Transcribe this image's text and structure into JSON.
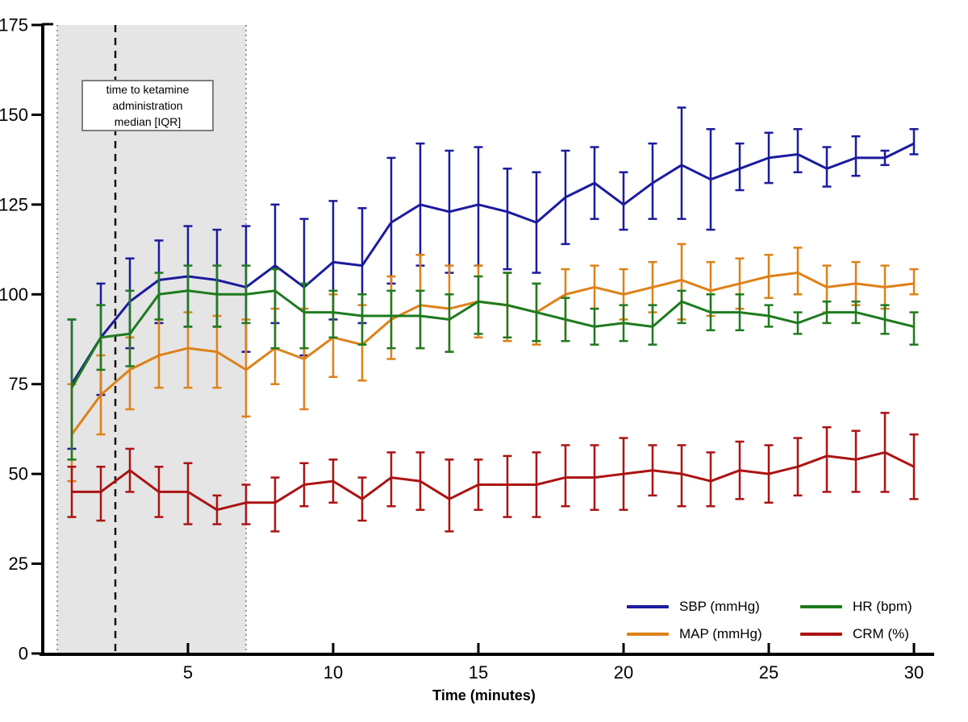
{
  "chart_data": {
    "type": "line",
    "title": "",
    "xlabel": "Time (minutes)",
    "ylabel": "",
    "x": [
      1,
      2,
      3,
      4,
      5,
      6,
      7,
      8,
      9,
      10,
      11,
      12,
      13,
      14,
      15,
      16,
      17,
      18,
      19,
      20,
      21,
      22,
      23,
      24,
      25,
      26,
      27,
      28,
      29,
      30
    ],
    "xlim": [
      0,
      30.7
    ],
    "ylim": [
      0,
      175
    ],
    "xticks": [
      5,
      10,
      15,
      20,
      25,
      30
    ],
    "yticks": [
      0,
      25,
      50,
      75,
      100,
      125,
      150,
      175
    ],
    "grid": false,
    "error_bars": true,
    "legend_position": "inside-bottom-right",
    "series": [
      {
        "name": "SBP (mmHg)",
        "color": "#1b1b9e",
        "values": [
          75,
          88,
          98,
          104,
          105,
          104,
          102,
          108,
          102,
          109,
          108,
          120,
          125,
          123,
          125,
          123,
          120,
          127,
          131,
          125,
          131,
          136,
          132,
          135,
          138,
          139,
          135,
          138,
          138,
          142
        ],
        "lower": [
          57,
          72,
          85,
          92,
          91,
          91,
          84,
          92,
          83,
          93,
          92,
          103,
          108,
          106,
          108,
          107,
          106,
          114,
          121,
          118,
          121,
          121,
          118,
          129,
          131,
          134,
          130,
          133,
          136,
          139
        ],
        "upper": [
          93,
          103,
          110,
          115,
          119,
          118,
          119,
          125,
          121,
          126,
          124,
          138,
          142,
          140,
          141,
          135,
          134,
          140,
          141,
          134,
          142,
          152,
          146,
          142,
          145,
          146,
          141,
          144,
          140,
          146
        ]
      },
      {
        "name": "MAP (mmHg)",
        "color": "#de8118",
        "values": [
          61,
          72,
          79,
          83,
          85,
          84,
          79,
          85,
          82,
          88,
          86,
          93,
          97,
          96,
          98,
          97,
          95,
          100,
          102,
          100,
          102,
          104,
          101,
          103,
          105,
          106,
          102,
          103,
          102,
          103
        ],
        "lower": [
          48,
          61,
          68,
          74,
          74,
          74,
          66,
          75,
          68,
          77,
          76,
          82,
          85,
          84,
          88,
          87,
          86,
          87,
          96,
          93,
          95,
          93,
          94,
          96,
          99,
          100,
          95,
          97,
          96,
          100
        ],
        "upper": [
          75,
          83,
          88,
          93,
          95,
          94,
          93,
          96,
          96,
          100,
          97,
          105,
          111,
          108,
          108,
          106,
          103,
          107,
          108,
          107,
          109,
          114,
          109,
          110,
          111,
          113,
          108,
          109,
          108,
          107
        ]
      },
      {
        "name": "HR (bpm)",
        "color": "#1e7b1e",
        "values": [
          74,
          88,
          89,
          100,
          101,
          100,
          100,
          101,
          95,
          95,
          94,
          94,
          94,
          93,
          98,
          97,
          95,
          93,
          91,
          92,
          91,
          98,
          95,
          95,
          94,
          92,
          95,
          95,
          93,
          91
        ],
        "lower": [
          54,
          79,
          80,
          93,
          91,
          91,
          92,
          85,
          85,
          88,
          86,
          85,
          85,
          84,
          89,
          88,
          87,
          87,
          86,
          87,
          86,
          92,
          90,
          90,
          91,
          89,
          92,
          92,
          89,
          86
        ],
        "upper": [
          93,
          97,
          101,
          106,
          108,
          108,
          108,
          107,
          103,
          101,
          100,
          101,
          101,
          100,
          105,
          106,
          103,
          99,
          96,
          97,
          97,
          101,
          100,
          100,
          97,
          95,
          98,
          98,
          97,
          95
        ]
      },
      {
        "name": "CRM (%)",
        "color": "#ac1313",
        "values": [
          45,
          45,
          51,
          45,
          45,
          40,
          42,
          42,
          47,
          48,
          43,
          49,
          48,
          43,
          47,
          47,
          47,
          49,
          49,
          50,
          51,
          50,
          48,
          51,
          50,
          52,
          55,
          54,
          56,
          52
        ],
        "lower": [
          38,
          37,
          45,
          38,
          36,
          36,
          36,
          34,
          41,
          42,
          37,
          41,
          40,
          34,
          40,
          38,
          38,
          41,
          40,
          40,
          44,
          41,
          41,
          43,
          42,
          44,
          45,
          45,
          45,
          43
        ],
        "upper": [
          52,
          52,
          57,
          52,
          53,
          44,
          47,
          49,
          53,
          54,
          49,
          56,
          56,
          54,
          54,
          55,
          56,
          58,
          58,
          60,
          58,
          58,
          56,
          59,
          58,
          60,
          63,
          62,
          67,
          61
        ]
      }
    ],
    "annotation": {
      "lines": [
        "time to ketamine",
        "administration",
        "median [IQR]"
      ],
      "shaded_region": {
        "x_start": 0.5,
        "x_end": 7,
        "median_line_x": 2.5,
        "fill": "#e5e5e5",
        "border_style": "dotted",
        "border_color": "#999999",
        "median_style": "dashed",
        "median_color": "#111111"
      }
    }
  }
}
